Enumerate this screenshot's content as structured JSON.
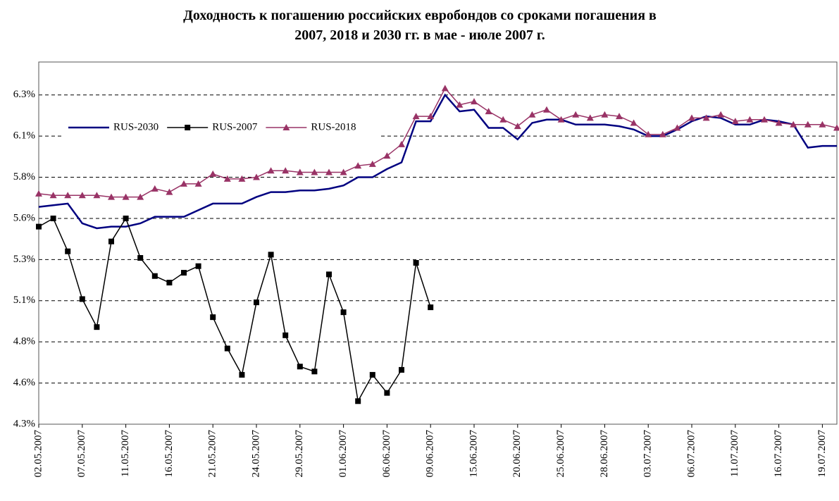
{
  "chart_data": {
    "type": "line",
    "title": "Доходность к погашению российских евробондов со сроками погашения в 2007, 2018 и 2030 гг. в мае - июле 2007 г.",
    "categories": [
      "02.05.2007",
      null,
      null,
      "07.05.2007",
      null,
      null,
      "11.05.2007",
      null,
      null,
      "16.05.2007",
      null,
      null,
      "21.05.2007",
      null,
      null,
      "24.05.2007",
      null,
      null,
      "29.05.2007",
      null,
      null,
      "01.06.2007",
      null,
      null,
      "06.06.2007",
      null,
      null,
      "09.06.2007",
      null,
      null,
      "15.06.2007",
      null,
      null,
      "20.06.2007",
      null,
      null,
      "25.06.2007",
      null,
      null,
      "28.06.2007",
      null,
      null,
      "03.07.2007",
      null,
      null,
      "06.07.2007",
      null,
      null,
      "11.07.2007",
      null,
      null,
      "16.07.2007",
      null,
      null,
      "19.07.2007",
      null
    ],
    "series": [
      {
        "name": "RUS-2030",
        "color": "#000080",
        "marker": "none",
        "values": [
          5.62,
          5.63,
          5.64,
          5.52,
          5.49,
          5.5,
          5.5,
          5.52,
          5.56,
          5.56,
          5.56,
          5.6,
          5.64,
          5.64,
          5.64,
          5.68,
          5.71,
          5.71,
          5.72,
          5.72,
          5.73,
          5.75,
          5.8,
          5.8,
          5.85,
          5.89,
          6.14,
          6.14,
          6.3,
          6.2,
          6.21,
          6.1,
          6.1,
          6.03,
          6.13,
          6.15,
          6.15,
          6.12,
          6.12,
          6.12,
          6.11,
          6.09,
          6.05,
          6.05,
          6.09,
          6.14,
          6.17,
          6.16,
          6.12,
          6.12,
          6.15,
          6.14,
          6.12,
          5.98,
          5.99,
          5.99
        ]
      },
      {
        "name": "RUS-2007",
        "color": "#000000",
        "marker": "square",
        "values": [
          5.5,
          5.55,
          5.35,
          5.06,
          4.89,
          5.41,
          5.55,
          5.31,
          5.2,
          5.16,
          5.22,
          5.26,
          4.95,
          4.76,
          4.6,
          5.04,
          5.33,
          4.84,
          4.65,
          4.62,
          5.21,
          4.98,
          4.44,
          4.6,
          4.49,
          4.63,
          5.28,
          5.01,
          null,
          null,
          null,
          null,
          null,
          null,
          null,
          null,
          null,
          null,
          null,
          null,
          null,
          null,
          null,
          null,
          null,
          null,
          null,
          null,
          null,
          null,
          null,
          null,
          null,
          null,
          null,
          null
        ]
      },
      {
        "name": "RUS-2018",
        "color": "#993366",
        "marker": "triangle",
        "values": [
          5.7,
          5.69,
          5.69,
          5.69,
          5.69,
          5.68,
          5.68,
          5.68,
          5.73,
          5.71,
          5.76,
          5.76,
          5.82,
          5.79,
          5.79,
          5.8,
          5.84,
          5.84,
          5.83,
          5.83,
          5.83,
          5.83,
          5.87,
          5.88,
          5.93,
          6.0,
          6.17,
          6.17,
          6.34,
          6.24,
          6.26,
          6.2,
          6.15,
          6.11,
          6.18,
          6.21,
          6.15,
          6.18,
          6.16,
          6.18,
          6.17,
          6.13,
          6.06,
          6.06,
          6.1,
          6.16,
          6.16,
          6.18,
          6.14,
          6.15,
          6.15,
          6.13,
          6.12,
          6.12,
          6.12,
          6.1
        ]
      }
    ],
    "ylim": [
      4.3,
      6.5
    ],
    "yticks": [
      {
        "value": 4.3,
        "label": "4.3%"
      },
      {
        "value": 4.55,
        "label": "4.6%"
      },
      {
        "value": 4.8,
        "label": "4.8%"
      },
      {
        "value": 5.05,
        "label": "5.1%"
      },
      {
        "value": 5.3,
        "label": "5.3%"
      },
      {
        "value": 5.55,
        "label": "5.6%"
      },
      {
        "value": 5.8,
        "label": "5.8%"
      },
      {
        "value": 6.05,
        "label": "6.1%"
      },
      {
        "value": 6.3,
        "label": "6.3%"
      }
    ],
    "grid": true,
    "legend": "upper left"
  }
}
